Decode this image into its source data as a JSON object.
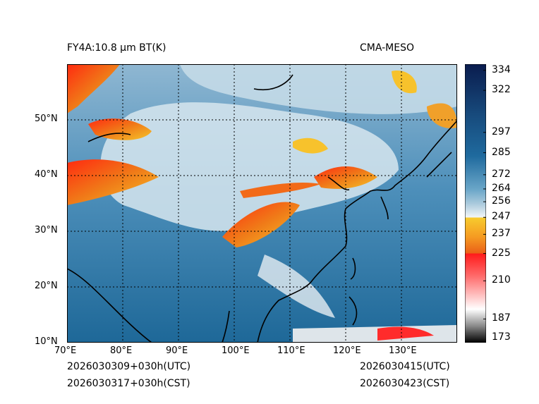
{
  "header": {
    "title_left": "FY4A:10.8 µm BT(K)",
    "title_right": "CMA-MESO"
  },
  "footer": {
    "init_utc": "2026030309+030h(UTC)",
    "init_cst": "2026030317+030h(CST)",
    "valid_utc": "2026030415(UTC)",
    "valid_cst": "2026030423(CST)"
  },
  "map": {
    "lon_range": [
      70,
      140
    ],
    "lat_range": [
      10,
      60
    ],
    "lon_ticks": [
      "70°E",
      "80°E",
      "90°E",
      "100°E",
      "110°E",
      "120°E",
      "130°E"
    ],
    "lon_tick_values": [
      70,
      80,
      90,
      100,
      110,
      120,
      130
    ],
    "lat_ticks": [
      "10°N",
      "20°N",
      "30°N",
      "40°N",
      "50°N"
    ],
    "lat_tick_values": [
      10,
      20,
      30,
      40,
      50
    ]
  },
  "colorbar": {
    "min": 173,
    "max": 334,
    "labels": [
      "334",
      "322",
      "297",
      "285",
      "272",
      "264",
      "256",
      "247",
      "237",
      "225",
      "210",
      "187",
      "173"
    ],
    "label_values": [
      334,
      322,
      297,
      285,
      272,
      264,
      256,
      247,
      237,
      225,
      210,
      187,
      173
    ],
    "colors": {
      "deep_navy": "#0a1c4e",
      "ocean_blue": "#1f6a9e",
      "light_blue": "#a9c9dc",
      "white": "#f2f6f8",
      "yellow": "#f7cc2e",
      "orange": "#ef7d1e",
      "red": "#ff1a1a",
      "pink": "#ffd0d0",
      "gray": "#8a8a8a",
      "black": "#000000"
    }
  }
}
